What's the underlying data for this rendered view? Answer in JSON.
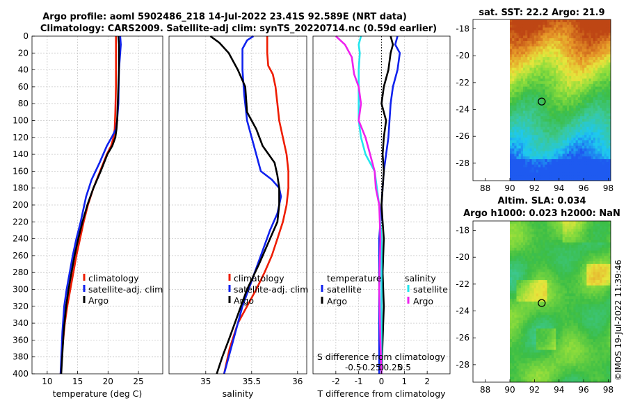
{
  "figure": {
    "title_line1": "Argo profile: aoml 5902486_218 14-Jul-2022 23.41S 92.589E (NRT data)",
    "title_line2": "Climatology: CARS2009. Satellite-adj clim: synTS_20220714.nc (0.59d earlier)",
    "credit": "©IMOS 19-Jul-2022 11:39:46"
  },
  "colors": {
    "red": "#ee1c00",
    "blue": "#1022ee",
    "black": "#000000",
    "cyan": "#22e6ee",
    "magenta": "#ee22ee"
  },
  "chart_data": [
    {
      "id": "temperature",
      "type": "line",
      "xlabel": "temperature (deg C)",
      "xlim": [
        7.5,
        29
      ],
      "ylim": [
        0,
        400
      ],
      "xticks": [
        "10",
        "15",
        "20",
        "25"
      ],
      "xtick_values": [
        10,
        15,
        20,
        25
      ],
      "yticks": [
        "0",
        "20",
        "40",
        "60",
        "80",
        "100",
        "120",
        "140",
        "160",
        "180",
        "200",
        "220",
        "240",
        "260",
        "280",
        "300",
        "320",
        "340",
        "360",
        "380",
        "400"
      ],
      "legend": [
        "climatology",
        "satellite-adj. clim",
        "Argo"
      ],
      "series": [
        {
          "name": "climatology",
          "color": "red",
          "x": [
            21.3,
            21.3,
            21.3,
            21.2,
            21.1,
            20.9,
            20.5,
            19.8,
            18.7,
            17.6,
            16.7,
            16.0,
            15.4,
            14.8,
            14.3,
            13.8,
            13.3,
            12.9,
            12.5,
            12.2
          ],
          "depth": [
            0,
            20,
            60,
            90,
            110,
            120,
            130,
            140,
            160,
            180,
            200,
            220,
            240,
            260,
            280,
            300,
            320,
            340,
            370,
            400
          ]
        },
        {
          "name": "satellite-adj. clim",
          "color": "blue",
          "x": [
            22.0,
            22.1,
            21.8,
            21.7,
            21.5,
            21.3,
            20.6,
            19.8,
            18.6,
            17.3,
            16.4,
            15.5,
            14.8,
            14.2,
            13.7,
            13.2,
            12.8,
            12.5,
            12.2
          ],
          "depth": [
            0,
            10,
            40,
            80,
            100,
            110,
            120,
            130,
            150,
            170,
            190,
            220,
            240,
            260,
            280,
            300,
            320,
            350,
            400
          ]
        },
        {
          "name": "Argo",
          "color": "black",
          "x": [
            21.7,
            21.8,
            21.8,
            21.6,
            21.5,
            21.4,
            21.2,
            20.7,
            19.9,
            18.8,
            17.6,
            16.6,
            15.8,
            15.1,
            14.5,
            14.0,
            13.5,
            13.1,
            12.7,
            12.3
          ],
          "depth": [
            0,
            10,
            40,
            80,
            100,
            110,
            120,
            130,
            140,
            160,
            180,
            200,
            220,
            240,
            260,
            280,
            300,
            320,
            350,
            400
          ]
        }
      ]
    },
    {
      "id": "salinity",
      "type": "line",
      "xlabel": "salinity",
      "xlim": [
        34.6,
        36.1
      ],
      "ylim": [
        0,
        400
      ],
      "xticks": [
        "35",
        "35.5",
        "36"
      ],
      "xtick_values": [
        35,
        35.5,
        36
      ],
      "legend": [
        "climatology",
        "satellite-adj. clim",
        "Argo"
      ],
      "series": [
        {
          "name": "climatology",
          "color": "red",
          "x": [
            35.67,
            35.67,
            35.68,
            35.73,
            35.76,
            35.78,
            35.8,
            35.84,
            35.88,
            35.9,
            35.9,
            35.89,
            35.88,
            35.84,
            35.78,
            35.72,
            35.64,
            35.55,
            35.45,
            35.35,
            35.26,
            35.2
          ],
          "depth": [
            0,
            20,
            35,
            45,
            60,
            80,
            100,
            120,
            140,
            160,
            180,
            190,
            200,
            220,
            240,
            260,
            280,
            300,
            320,
            340,
            370,
            400
          ]
        },
        {
          "name": "satellite-adj. clim",
          "color": "blue",
          "x": [
            35.52,
            35.45,
            35.4,
            35.4,
            35.42,
            35.45,
            35.5,
            35.55,
            35.6,
            35.72,
            35.8,
            35.82,
            35.78,
            35.7,
            35.6,
            35.5,
            35.4,
            35.3,
            35.2
          ],
          "depth": [
            0,
            5,
            15,
            40,
            70,
            100,
            120,
            140,
            160,
            170,
            180,
            190,
            210,
            230,
            260,
            290,
            320,
            360,
            400
          ]
        },
        {
          "name": "Argo",
          "color": "black",
          "x": [
            35.05,
            35.15,
            35.25,
            35.35,
            35.43,
            35.45,
            35.55,
            35.62,
            35.75,
            35.78,
            35.8,
            35.8,
            35.78,
            35.7,
            35.58,
            35.45,
            35.35,
            35.25,
            35.18,
            35.12
          ],
          "depth": [
            0,
            8,
            20,
            40,
            60,
            90,
            110,
            130,
            150,
            165,
            180,
            200,
            220,
            240,
            270,
            300,
            330,
            360,
            380,
            400
          ]
        }
      ]
    },
    {
      "id": "difference",
      "type": "line",
      "xlabel": "T difference from climatology",
      "xlabel_top": "S difference from climatology",
      "xlim": [
        -3,
        3
      ],
      "ylim": [
        0,
        400
      ],
      "xticks": [
        "-2",
        "-1",
        "0",
        "1",
        "2"
      ],
      "xtick_values": [
        -2,
        -1,
        0,
        1,
        2
      ],
      "sticks": [
        "-0.5",
        "-0.25",
        "0",
        "0.25",
        "0.5"
      ],
      "stick_values": [
        -0.5,
        -0.25,
        0,
        0.25,
        0.5
      ],
      "legend_left_title": "temperature",
      "legend_right_title": "salinity",
      "legend": [
        "satellite",
        "Argo",
        "satellite",
        "Argo"
      ],
      "series": [
        {
          "name": "temperature satellite",
          "color": "blue",
          "x": [
            0.7,
            0.6,
            0.8,
            0.7,
            0.5,
            0.4,
            0.35,
            0.3,
            0.2,
            0.1,
            0.05,
            0.0,
            -0.05,
            -0.1,
            -0.1,
            -0.1,
            -0.1,
            -0.1
          ],
          "depth": [
            0,
            10,
            20,
            40,
            60,
            80,
            100,
            120,
            140,
            160,
            180,
            200,
            220,
            240,
            280,
            320,
            360,
            400
          ]
        },
        {
          "name": "temperature Argo",
          "color": "black",
          "x": [
            0.4,
            0.5,
            0.4,
            0.3,
            0.1,
            0.0,
            0.2,
            0.1,
            0.05,
            0.1,
            0.05,
            0.0,
            0.05,
            0.1,
            0.05,
            0.1,
            0.05,
            0.0
          ],
          "depth": [
            0,
            10,
            20,
            40,
            60,
            80,
            100,
            120,
            140,
            160,
            180,
            200,
            220,
            240,
            280,
            320,
            360,
            400
          ]
        },
        {
          "name": "salinity satellite",
          "color": "cyan",
          "x": [
            -0.9,
            -1.0,
            -0.95,
            -1.0,
            -1.0,
            -1.0,
            -1.0,
            -0.9,
            -0.7,
            -0.3,
            -0.2,
            -0.1,
            0.0,
            0.0,
            0.0,
            0.0
          ],
          "depth": [
            0,
            10,
            20,
            40,
            60,
            80,
            100,
            120,
            140,
            160,
            180,
            200,
            240,
            300,
            360,
            400
          ]
        },
        {
          "name": "salinity Argo",
          "color": "magenta",
          "x": [
            -2.0,
            -1.6,
            -1.3,
            -1.2,
            -1.0,
            -0.9,
            -1.0,
            -0.7,
            -0.5,
            -0.3,
            -0.25,
            -0.1,
            -0.05,
            -0.1,
            -0.05,
            0.0
          ],
          "depth": [
            0,
            10,
            25,
            45,
            60,
            80,
            100,
            120,
            140,
            160,
            180,
            200,
            240,
            300,
            360,
            400
          ]
        }
      ]
    },
    {
      "id": "sst-map",
      "type": "heatmap",
      "title": "sat. SST: 22.2 Argo: 21.9",
      "xticks": [
        "88",
        "90",
        "92",
        "94",
        "96",
        "98"
      ],
      "xtick_values": [
        88,
        90,
        92,
        94,
        96,
        98
      ],
      "yticks": [
        "-18",
        "-20",
        "-22",
        "-24",
        "-26",
        "-28"
      ],
      "ytick_values": [
        -18,
        -20,
        -22,
        -24,
        -26,
        -28
      ],
      "xlim": [
        87,
        98.2
      ],
      "ylim": [
        -29.3,
        -17.3
      ],
      "marker": [
        92.59,
        -23.41
      ]
    },
    {
      "id": "sla-map",
      "type": "heatmap",
      "title_line1": "Altim. SLA: 0.034",
      "title_line2": "Argo h1000: 0.023 h2000: NaN",
      "xticks": [
        "88",
        "90",
        "92",
        "94",
        "96",
        "98"
      ],
      "xtick_values": [
        88,
        90,
        92,
        94,
        96,
        98
      ],
      "yticks": [
        "-18",
        "-20",
        "-22",
        "-24",
        "-26",
        "-28"
      ],
      "ytick_values": [
        -18,
        -20,
        -22,
        -24,
        -26,
        -28
      ],
      "xlim": [
        87,
        98.2
      ],
      "ylim": [
        -29.3,
        -17.3
      ],
      "marker": [
        92.59,
        -23.41
      ]
    }
  ]
}
